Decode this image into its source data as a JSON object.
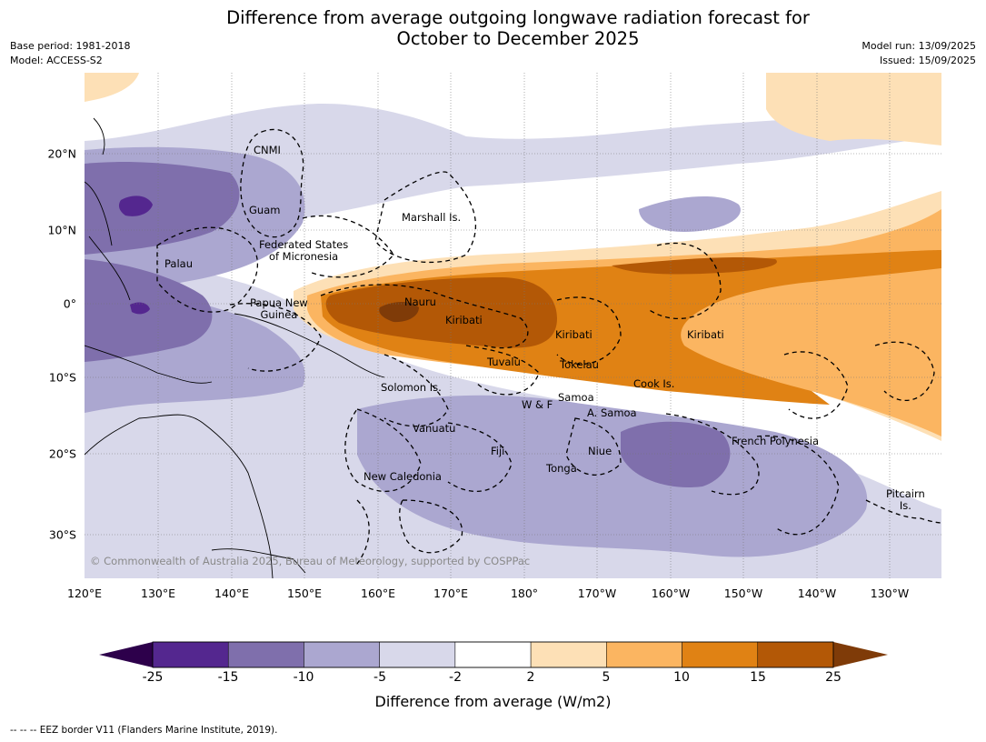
{
  "title_line1": "Difference from average outgoing longwave radiation forecast for",
  "title_line2": "October to December 2025",
  "meta": {
    "base_period": "Base period: 1981-2018",
    "model": "Model: ACCESS-S2",
    "model_run": "Model run: 13/09/2025",
    "issued": "Issued: 15/09/2025"
  },
  "axes": {
    "lon_labels": [
      "120°E",
      "130°E",
      "140°E",
      "150°E",
      "160°E",
      "170°E",
      "180°",
      "170°W",
      "160°W",
      "150°W",
      "140°W",
      "130°W"
    ],
    "lat_labels": [
      "20°N",
      "10°N",
      "0°",
      "10°S",
      "20°S",
      "30°S"
    ]
  },
  "places": {
    "cnmi": "CNMI",
    "guam": "Guam",
    "marshall": "Marshall Is.",
    "fsm1": "Federated States",
    "fsm2": "of Micronesia",
    "palau": "Palau",
    "png1": "Papua New",
    "png2": "Guinea",
    "nauru": "Nauru",
    "kiribati_w": "Kiribati",
    "kiribati_c": "Kiribati",
    "kiribati_e": "Kiribati",
    "tuvalu": "Tuvalu",
    "tokelau": "Tokelau",
    "cook": "Cook Is.",
    "solomon": "Solomon Is.",
    "wf": "W & F",
    "samoa": "Samoa",
    "asamoa": "A. Samoa",
    "vanuatu": "Vanuatu",
    "fiji": "Fiji",
    "niue": "Niue",
    "tonga": "Tonga",
    "frpoly": "French Polynesia",
    "newcal": "New Caledonia",
    "pitcairn1": "Pitcairn",
    "pitcairn2": "Is."
  },
  "copyright": "© Commonwealth of Australia 2025, Bureau of Meteorology, supported by COSPPac",
  "colorbar": {
    "ticks": [
      "-25",
      "-15",
      "-10",
      "-5",
      "-2",
      "2",
      "5",
      "10",
      "15",
      "25"
    ],
    "colors": [
      "#54278f",
      "#7f6fac",
      "#aba7d0",
      "#d8d8ea",
      "#ffffff",
      "#fde0b6",
      "#fbb561",
      "#e08214",
      "#b35806"
    ],
    "under_color": "#2d004b",
    "over_color": "#7f3b08",
    "label": "Difference from average (W/m2)"
  },
  "footer": "--  --  -- EEZ border V11 (Flanders Marine Institute, 2019)."
}
